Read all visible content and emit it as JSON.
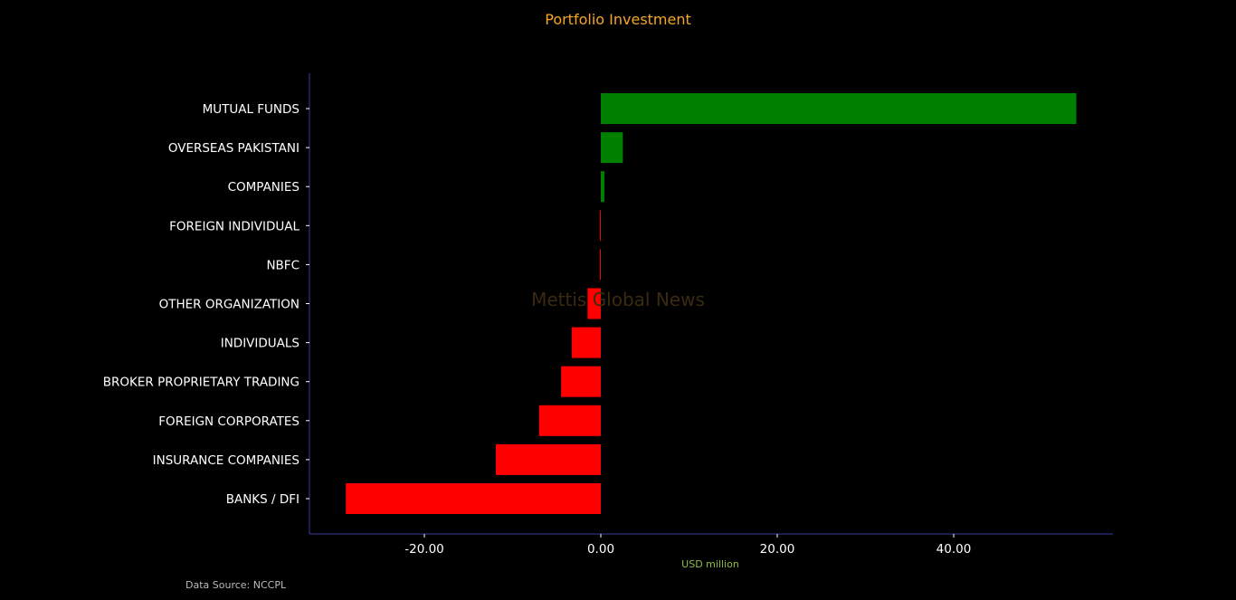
{
  "chart_data": {
    "type": "bar",
    "orientation": "horizontal",
    "title": "Portfolio Investment",
    "xlabel": "USD million",
    "ylabel": "",
    "source": "Data Source: NCCPL",
    "watermark": "Mettis Global News",
    "categories": [
      "MUTUAL FUNDS",
      "OVERSEAS PAKISTANI",
      "COMPANIES",
      "FOREIGN INDIVIDUAL",
      "NBFC",
      "OTHER ORGANIZATION",
      "INDIVIDUALS",
      "BROKER PROPRIETARY TRADING",
      "FOREIGN CORPORATES",
      "INSURANCE COMPANIES",
      "BANKS / DFI"
    ],
    "values": [
      53.9,
      2.5,
      0.4,
      -0.1,
      -0.1,
      -1.5,
      -3.3,
      -4.5,
      -7.0,
      -11.9,
      -28.9
    ],
    "xlim": [
      -33,
      58
    ],
    "xticks": [
      -20,
      0,
      20,
      40
    ],
    "xtick_labels": [
      "-20.00",
      "0.00",
      "20.00",
      "40.00"
    ],
    "grid": false,
    "legend": "none",
    "colors": {
      "positive": "#008000",
      "negative": "#ff0000",
      "background": "#000000",
      "axis": "#3a3aa0",
      "title": "#f5a623",
      "xlabel": "#8fbf3f",
      "text": "#ffffff",
      "source": "#bbbbbb",
      "watermark": "#3a2a10"
    }
  }
}
